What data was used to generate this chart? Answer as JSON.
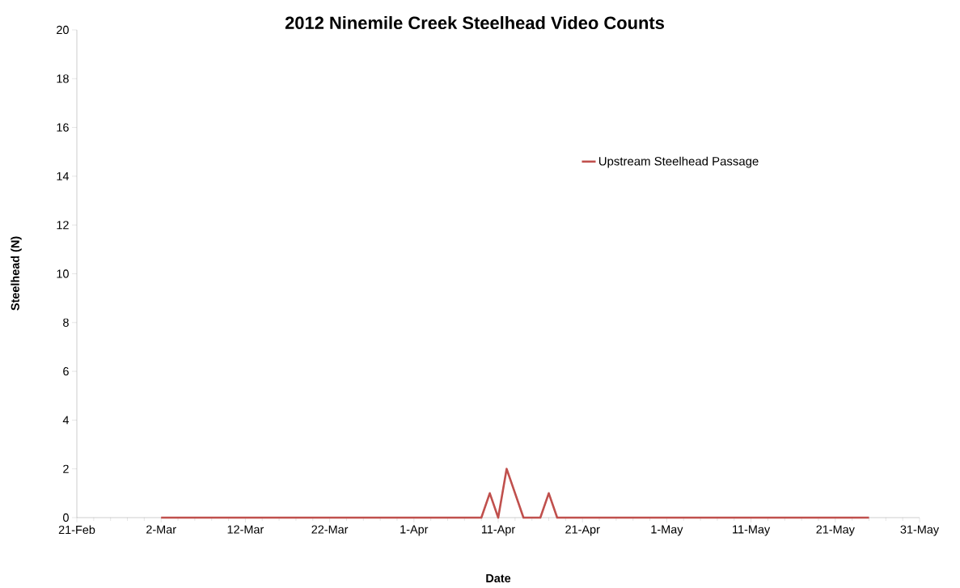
{
  "chart_data": {
    "type": "line",
    "title": "2012 Ninemile Creek Steelhead Video Counts",
    "xlabel": "Date",
    "ylabel": "Steelhead (N)",
    "series": [
      {
        "name": "Upstream Steelhead Passage",
        "color": "#c0504d",
        "x": [
          "2012-03-02",
          "2012-04-09",
          "2012-04-10",
          "2012-04-11",
          "2012-04-12",
          "2012-04-14",
          "2012-04-16",
          "2012-04-17",
          "2012-04-18",
          "2012-05-25"
        ],
        "values": [
          0,
          0,
          1,
          0,
          2,
          0,
          0,
          1,
          0,
          0
        ]
      }
    ],
    "xlim": [
      "2012-02-21",
      "2012-05-31"
    ],
    "xticks": [
      {
        "value": "2012-02-21",
        "label": "21-Feb"
      },
      {
        "value": "2012-03-02",
        "label": "2-Mar"
      },
      {
        "value": "2012-03-12",
        "label": "12-Mar"
      },
      {
        "value": "2012-03-22",
        "label": "22-Mar"
      },
      {
        "value": "2012-04-01",
        "label": "1-Apr"
      },
      {
        "value": "2012-04-11",
        "label": "11-Apr"
      },
      {
        "value": "2012-04-21",
        "label": "21-Apr"
      },
      {
        "value": "2012-05-01",
        "label": "1-May"
      },
      {
        "value": "2012-05-11",
        "label": "11-May"
      },
      {
        "value": "2012-05-21",
        "label": "21-May"
      },
      {
        "value": "2012-05-31",
        "label": "31-May"
      }
    ],
    "ylim": [
      0,
      20
    ],
    "yticks": [
      0,
      2,
      4,
      6,
      8,
      10,
      12,
      14,
      16,
      18,
      20
    ],
    "legend": "top right",
    "marker": "none",
    "line_style": "solid",
    "grid": false
  }
}
